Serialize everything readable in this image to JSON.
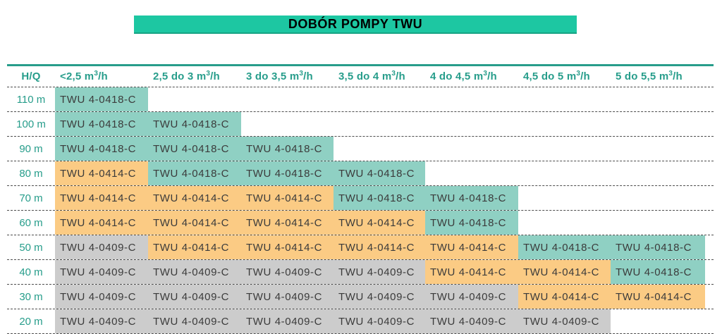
{
  "title": "DOBÓR POMPY TWU",
  "colors": {
    "title_bar_bg": "#1dc7a2",
    "header_text": "#279d8b",
    "teal_cell": "#8fd0c3",
    "orange_cell": "#fbcb84",
    "gray_cell": "#cccccc",
    "cell_text": "#3b3b3b",
    "divider": "#4d4d4d",
    "title_text": "#000000"
  },
  "table": {
    "corner_label": "H/Q",
    "columns": [
      {
        "pre": "<2,5 m",
        "sup": "3",
        "post": "/h"
      },
      {
        "pre": "2,5 do 3 m",
        "sup": "3",
        "post": "/h"
      },
      {
        "pre": "3 do 3,5 m",
        "sup": "3",
        "post": "/h"
      },
      {
        "pre": "3,5 do 4 m",
        "sup": "3",
        "post": "/h"
      },
      {
        "pre": "4 do 4,5 m",
        "sup": "3",
        "post": "/h"
      },
      {
        "pre": "4,5 do 5 m",
        "sup": "3",
        "post": "/h"
      },
      {
        "pre": "5 do 5,5 m",
        "sup": "3",
        "post": "/h"
      }
    ],
    "rows": [
      {
        "label": "110 m",
        "cells": [
          {
            "text": "TWU 4-0418-C",
            "color": "teal"
          },
          null,
          null,
          null,
          null,
          null,
          null
        ]
      },
      {
        "label": "100 m",
        "cells": [
          {
            "text": "TWU 4-0418-C",
            "color": "teal"
          },
          {
            "text": "TWU 4-0418-C",
            "color": "teal"
          },
          null,
          null,
          null,
          null,
          null
        ]
      },
      {
        "label": "90 m",
        "cells": [
          {
            "text": "TWU 4-0418-C",
            "color": "teal"
          },
          {
            "text": "TWU 4-0418-C",
            "color": "teal"
          },
          {
            "text": "TWU 4-0418-C",
            "color": "teal"
          },
          null,
          null,
          null,
          null
        ]
      },
      {
        "label": "80 m",
        "cells": [
          {
            "text": "TWU 4-0414-C",
            "color": "orange"
          },
          {
            "text": "TWU 4-0418-C",
            "color": "teal"
          },
          {
            "text": "TWU 4-0418-C",
            "color": "teal"
          },
          {
            "text": "TWU 4-0418-C",
            "color": "teal"
          },
          null,
          null,
          null
        ]
      },
      {
        "label": "70 m",
        "cells": [
          {
            "text": "TWU 4-0414-C",
            "color": "orange"
          },
          {
            "text": "TWU 4-0414-C",
            "color": "orange"
          },
          {
            "text": "TWU 4-0414-C",
            "color": "orange"
          },
          {
            "text": "TWU 4-0418-C",
            "color": "teal"
          },
          {
            "text": "TWU 4-0418-C",
            "color": "teal"
          },
          null,
          null
        ]
      },
      {
        "label": "60 m",
        "cells": [
          {
            "text": "TWU 4-0414-C",
            "color": "orange"
          },
          {
            "text": "TWU 4-0414-C",
            "color": "orange"
          },
          {
            "text": "TWU 4-0414-C",
            "color": "orange"
          },
          {
            "text": "TWU 4-0414-C",
            "color": "orange"
          },
          {
            "text": "TWU 4-0418-C",
            "color": "teal"
          },
          null,
          null
        ]
      },
      {
        "label": "50 m",
        "cells": [
          {
            "text": "TWU 4-0409-C",
            "color": "gray"
          },
          {
            "text": "TWU 4-0414-C",
            "color": "orange"
          },
          {
            "text": "TWU 4-0414-C",
            "color": "orange"
          },
          {
            "text": "TWU 4-0414-C",
            "color": "orange"
          },
          {
            "text": "TWU 4-0414-C",
            "color": "orange"
          },
          {
            "text": "TWU 4-0418-C",
            "color": "teal"
          },
          {
            "text": "TWU 4-0418-C",
            "color": "teal"
          }
        ]
      },
      {
        "label": "40 m",
        "cells": [
          {
            "text": "TWU 4-0409-C",
            "color": "gray"
          },
          {
            "text": "TWU 4-0409-C",
            "color": "gray"
          },
          {
            "text": "TWU 4-0409-C",
            "color": "gray"
          },
          {
            "text": "TWU 4-0409-C",
            "color": "gray"
          },
          {
            "text": "TWU 4-0414-C",
            "color": "orange"
          },
          {
            "text": "TWU 4-0414-C",
            "color": "orange"
          },
          {
            "text": "TWU 4-0418-C",
            "color": "teal"
          }
        ]
      },
      {
        "label": "30 m",
        "cells": [
          {
            "text": "TWU 4-0409-C",
            "color": "gray"
          },
          {
            "text": "TWU 4-0409-C",
            "color": "gray"
          },
          {
            "text": "TWU 4-0409-C",
            "color": "gray"
          },
          {
            "text": "TWU 4-0409-C",
            "color": "gray"
          },
          {
            "text": "TWU 4-0409-C",
            "color": "gray"
          },
          {
            "text": "TWU 4-0414-C",
            "color": "orange"
          },
          {
            "text": "TWU 4-0414-C",
            "color": "orange"
          }
        ]
      },
      {
        "label": "20 m",
        "cells": [
          {
            "text": "TWU 4-0409-C",
            "color": "gray"
          },
          {
            "text": "TWU 4-0409-C",
            "color": "gray"
          },
          {
            "text": "TWU 4-0409-C",
            "color": "gray"
          },
          {
            "text": "TWU 4-0409-C",
            "color": "gray"
          },
          {
            "text": "TWU 4-0409-C",
            "color": "gray"
          },
          {
            "text": "TWU 4-0409-C",
            "color": "gray"
          },
          null
        ]
      }
    ]
  }
}
